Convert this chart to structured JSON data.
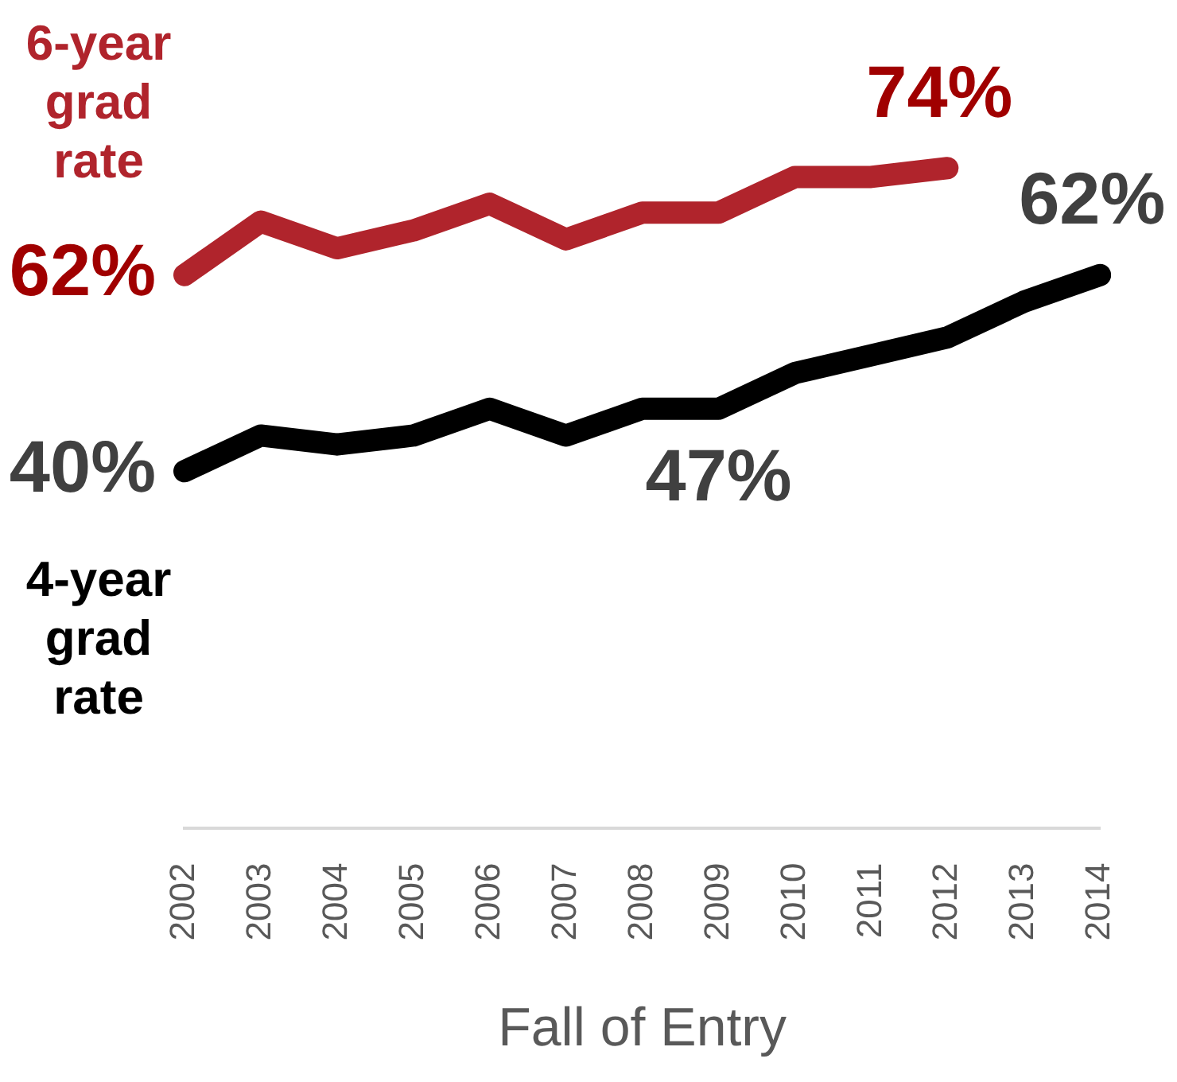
{
  "chart_data": {
    "type": "line",
    "xlabel": "Fall of Entry",
    "categories": [
      "2002",
      "2003",
      "2004",
      "2005",
      "2006",
      "2007",
      "2008",
      "2009",
      "2010",
      "2011",
      "2012",
      "2013",
      "2014"
    ],
    "tick_labels": "x",
    "grid": false,
    "legend": false,
    "marker": "none",
    "line_style": "solid",
    "series": [
      {
        "name": "6-year grad rate",
        "color": "#b0242c",
        "values": [
          62,
          68,
          65,
          67,
          70,
          66,
          69,
          69,
          73,
          73,
          74,
          null,
          null
        ],
        "value_labels": [
          "62%",
          null,
          null,
          null,
          null,
          null,
          null,
          null,
          null,
          null,
          "74%",
          null,
          null
        ]
      },
      {
        "name": "4-year grad rate",
        "color": "#000000",
        "values": [
          40,
          44,
          43,
          44,
          47,
          44,
          47,
          47,
          51,
          53,
          55,
          59,
          62
        ],
        "value_labels": [
          "40%",
          null,
          null,
          null,
          null,
          null,
          null,
          "47%",
          null,
          null,
          null,
          null,
          "62%"
        ]
      }
    ]
  }
}
